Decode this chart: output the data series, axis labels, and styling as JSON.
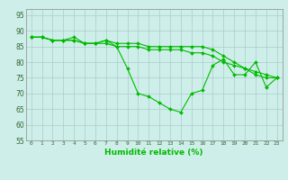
{
  "xlabel": "Humidité relative (%)",
  "background_color": "#ceeee9",
  "grid_color": "#aacccc",
  "line_color": "#00bb00",
  "ylim": [
    55,
    97
  ],
  "xlim": [
    -0.5,
    23.5
  ],
  "yticks": [
    55,
    60,
    65,
    70,
    75,
    80,
    85,
    90,
    95
  ],
  "xticks": [
    0,
    1,
    2,
    3,
    4,
    5,
    6,
    7,
    8,
    9,
    10,
    11,
    12,
    13,
    14,
    15,
    16,
    17,
    18,
    19,
    20,
    21,
    22,
    23
  ],
  "series": [
    [
      88,
      88,
      87,
      87,
      88,
      86,
      86,
      87,
      85,
      78,
      70,
      69,
      67,
      65,
      64,
      70,
      71,
      79,
      81,
      76,
      76,
      80,
      72,
      75
    ],
    [
      88,
      88,
      87,
      87,
      87,
      86,
      86,
      87,
      86,
      86,
      86,
      85,
      85,
      85,
      85,
      85,
      85,
      84,
      82,
      80,
      78,
      77,
      76,
      75
    ],
    [
      88,
      88,
      87,
      87,
      87,
      86,
      86,
      86,
      85,
      85,
      85,
      84,
      84,
      84,
      84,
      83,
      83,
      82,
      80,
      79,
      78,
      76,
      75,
      75
    ]
  ]
}
